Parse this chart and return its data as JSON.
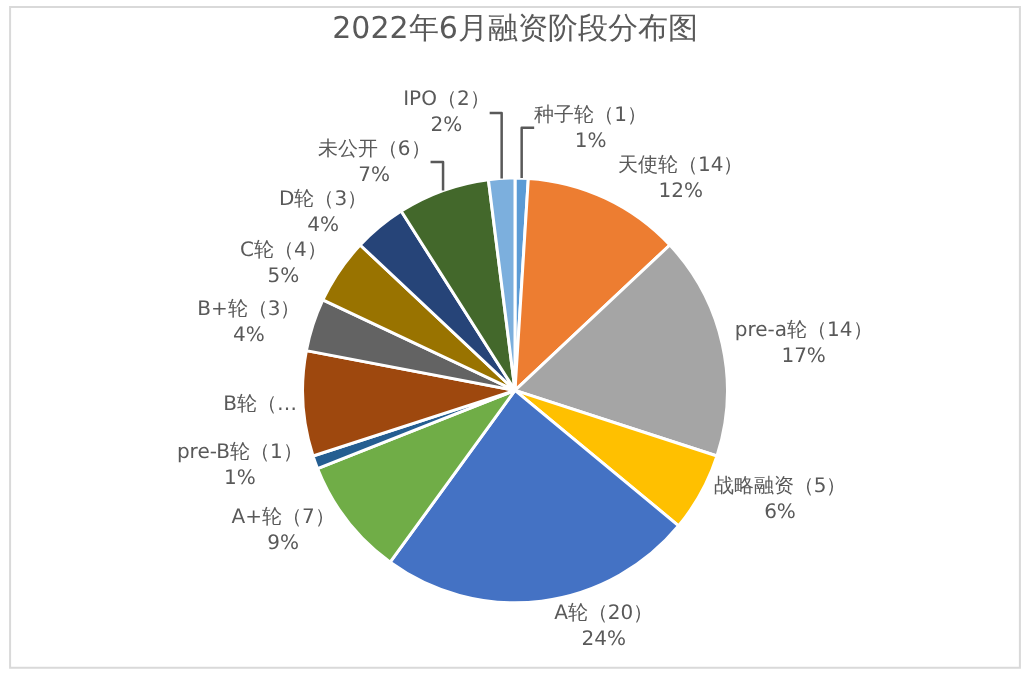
{
  "chart_data": {
    "type": "pie",
    "title": "2022年6月融资阶段分布图",
    "categories": [
      "种子轮（1）",
      "天使轮（14）",
      "pre-a轮（14）",
      "战略融资（5）",
      "A轮（20）",
      "A+轮（7）",
      "pre-B轮（1）",
      "B轮（…",
      "B+轮（3）",
      "C轮（4）",
      "D轮（3）",
      "未公开（6）",
      "IPO（2）"
    ],
    "values": [
      1,
      12,
      17,
      6,
      24,
      9,
      1,
      8,
      4,
      5,
      4,
      7,
      2
    ],
    "value_labels": [
      "1%",
      "12%",
      "17%",
      "6%",
      "24%",
      "9%",
      "1%",
      null,
      "4%",
      "5%",
      "4%",
      "7%",
      "2%"
    ],
    "colors": [
      "#5b9bd5",
      "#ed7d31",
      "#a5a5a5",
      "#ffc000",
      "#4472c4",
      "#70ad47",
      "#255e91",
      "#9e480e",
      "#636363",
      "#997300",
      "#264478",
      "#43682b",
      "#7cafdd"
    ],
    "legend": false
  }
}
